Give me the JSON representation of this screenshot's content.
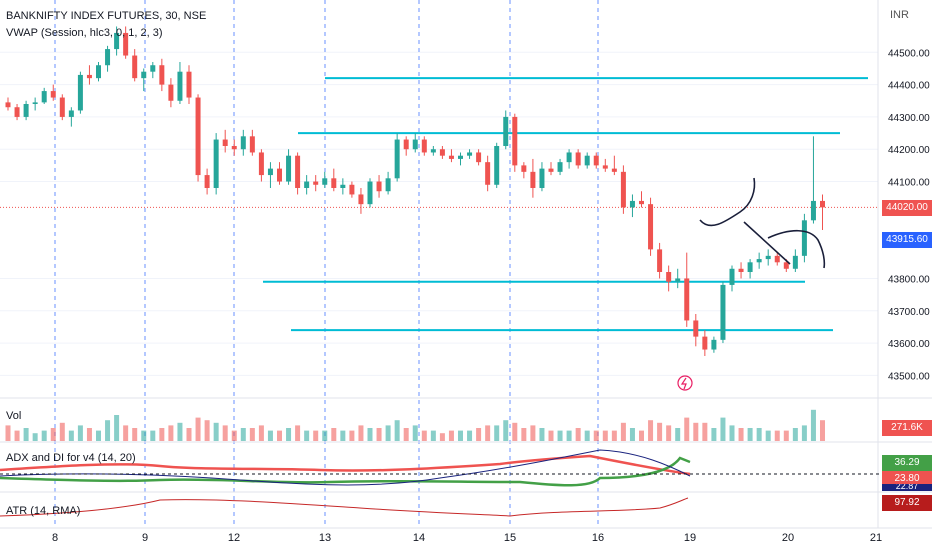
{
  "header": {
    "symbol_title": "BANKNIFTY INDEX FUTURES, 30, NSE",
    "vwap_label": "VWAP (Session, hlc3, 0, 1, 2, 3)",
    "currency": "INR"
  },
  "price_axis": {
    "ticks": [
      "44500.00",
      "44400.00",
      "44300.00",
      "44200.00",
      "44100.00",
      "43800.00",
      "43700.00",
      "43600.00",
      "43500.00"
    ],
    "tick_values": [
      44500,
      44400,
      44300,
      44200,
      44100,
      43800,
      43700,
      43600,
      43500
    ],
    "current_price": "44020.00",
    "vwap_price": "43915.60"
  },
  "time_axis": {
    "labels": [
      "8",
      "9",
      "12",
      "13",
      "14",
      "15",
      "16",
      "19",
      "20",
      "21"
    ]
  },
  "panes": {
    "volume": {
      "label": "Vol",
      "value": "271.6K"
    },
    "adx": {
      "label": "ADX and DI for v4 (14, 20)",
      "value_top": "36.29",
      "value_bottom": "23.80",
      "value_hidden": "22.87"
    },
    "atr": {
      "label": "ATR (14, RMA)",
      "value": "97.92"
    }
  },
  "colors": {
    "bull": "#26a69a",
    "bear": "#ef5350",
    "hline": "#00bcd4",
    "grid": "#f0f3fa",
    "session_sep": "#2962ff",
    "current_price_tag": "#ef5350",
    "vwap_tag": "#2962ff",
    "adx_top_tag": "#43a047",
    "atr_tag": "#b71c1c",
    "volume_tag": "#ef5350"
  },
  "chart_data": {
    "type": "candlestick",
    "ylim": [
      43430,
      44600
    ],
    "horizontal_levels": [
      44420,
      44250,
      43790,
      43640
    ],
    "candles": [
      [
        44345,
        44360,
        44320,
        44330
      ],
      [
        44330,
        44340,
        44290,
        44300
      ],
      [
        44300,
        44350,
        44290,
        44340
      ],
      [
        44340,
        44360,
        44320,
        44345
      ],
      [
        44345,
        44390,
        44340,
        44380
      ],
      [
        44380,
        44400,
        44350,
        44360
      ],
      [
        44360,
        44370,
        44290,
        44300
      ],
      [
        44300,
        44330,
        44270,
        44320
      ],
      [
        44320,
        44440,
        44310,
        44430
      ],
      [
        44430,
        44460,
        44400,
        44420
      ],
      [
        44420,
        44470,
        44410,
        44460
      ],
      [
        44460,
        44520,
        44440,
        44510
      ],
      [
        44510,
        44580,
        44490,
        44560
      ],
      [
        44560,
        44580,
        44480,
        44490
      ],
      [
        44490,
        44510,
        44410,
        44420
      ],
      [
        44420,
        44450,
        44380,
        44440
      ],
      [
        44440,
        44470,
        44420,
        44460
      ],
      [
        44460,
        44480,
        44380,
        44400
      ],
      [
        44400,
        44420,
        44330,
        44350
      ],
      [
        44350,
        44470,
        44340,
        44440
      ],
      [
        44440,
        44460,
        44340,
        44360
      ],
      [
        44360,
        44370,
        44100,
        44120
      ],
      [
        44120,
        44140,
        44060,
        44080
      ],
      [
        44080,
        44250,
        44060,
        44230
      ],
      [
        44230,
        44260,
        44190,
        44210
      ],
      [
        44210,
        44230,
        44180,
        44200
      ],
      [
        44200,
        44260,
        44180,
        44240
      ],
      [
        44240,
        44260,
        44180,
        44190
      ],
      [
        44190,
        44200,
        44100,
        44120
      ],
      [
        44120,
        44160,
        44080,
        44140
      ],
      [
        44140,
        44160,
        44090,
        44100
      ],
      [
        44100,
        44200,
        44090,
        44180
      ],
      [
        44180,
        44190,
        44060,
        44080
      ],
      [
        44080,
        44120,
        44060,
        44100
      ],
      [
        44100,
        44120,
        44070,
        44090
      ],
      [
        44090,
        44130,
        44080,
        44110
      ],
      [
        44110,
        44140,
        44070,
        44080
      ],
      [
        44080,
        44110,
        44060,
        44090
      ],
      [
        44090,
        44100,
        44050,
        44060
      ],
      [
        44060,
        44080,
        44000,
        44030
      ],
      [
        44030,
        44110,
        44020,
        44100
      ],
      [
        44100,
        44120,
        44050,
        44070
      ],
      [
        44070,
        44130,
        44060,
        44110
      ],
      [
        44110,
        44250,
        44100,
        44230
      ],
      [
        44230,
        44240,
        44180,
        44200
      ],
      [
        44200,
        44250,
        44190,
        44230
      ],
      [
        44230,
        44240,
        44180,
        44190
      ],
      [
        44190,
        44210,
        44180,
        44200
      ],
      [
        44200,
        44210,
        44170,
        44180
      ],
      [
        44180,
        44200,
        44160,
        44170
      ],
      [
        44170,
        44190,
        44150,
        44180
      ],
      [
        44180,
        44200,
        44170,
        44190
      ],
      [
        44190,
        44200,
        44150,
        44160
      ],
      [
        44160,
        44180,
        44070,
        44090
      ],
      [
        44090,
        44220,
        44080,
        44210
      ],
      [
        44210,
        44320,
        44200,
        44300
      ],
      [
        44300,
        44310,
        44130,
        44150
      ],
      [
        44150,
        44160,
        44110,
        44130
      ],
      [
        44130,
        44170,
        44050,
        44080
      ],
      [
        44080,
        44160,
        44070,
        44140
      ],
      [
        44140,
        44160,
        44120,
        44130
      ],
      [
        44130,
        44170,
        44120,
        44160
      ],
      [
        44160,
        44200,
        44140,
        44190
      ],
      [
        44190,
        44200,
        44140,
        44150
      ],
      [
        44150,
        44190,
        44140,
        44180
      ],
      [
        44180,
        44190,
        44140,
        44150
      ],
      [
        44150,
        44170,
        44130,
        44140
      ],
      [
        44140,
        44180,
        44120,
        44130
      ],
      [
        44130,
        44150,
        44000,
        44020
      ],
      [
        44020,
        44060,
        43990,
        44040
      ],
      [
        44040,
        44070,
        44020,
        44030
      ],
      [
        44030,
        44050,
        43870,
        43890
      ],
      [
        43890,
        43910,
        43800,
        43820
      ],
      [
        43820,
        43840,
        43760,
        43790
      ],
      [
        43790,
        43830,
        43770,
        43800
      ],
      [
        43800,
        43880,
        43650,
        43670
      ],
      [
        43670,
        43690,
        43590,
        43620
      ],
      [
        43620,
        43640,
        43560,
        43580
      ],
      [
        43580,
        43620,
        43570,
        43610
      ],
      [
        43610,
        43790,
        43600,
        43780
      ],
      [
        43780,
        43840,
        43760,
        43830
      ],
      [
        43830,
        43850,
        43800,
        43820
      ],
      [
        43820,
        43860,
        43800,
        43850
      ],
      [
        43850,
        43880,
        43830,
        43860
      ],
      [
        43860,
        43890,
        43840,
        43870
      ],
      [
        43870,
        43880,
        43840,
        43850
      ],
      [
        43850,
        43860,
        43820,
        43830
      ],
      [
        43830,
        43890,
        43820,
        43870
      ],
      [
        43870,
        44000,
        43850,
        43980
      ],
      [
        43980,
        44240,
        43970,
        44040
      ],
      [
        44040,
        44060,
        43950,
        44020
      ]
    ],
    "volume": [
      6,
      4,
      5,
      3,
      4,
      5,
      7,
      4,
      6,
      5,
      4,
      8,
      10,
      6,
      5,
      4,
      4,
      5,
      6,
      7,
      5,
      9,
      8,
      7,
      6,
      4,
      5,
      5,
      6,
      4,
      4,
      5,
      6,
      4,
      4,
      4,
      5,
      4,
      4,
      6,
      5,
      5,
      6,
      8,
      5,
      6,
      4,
      4,
      3,
      4,
      4,
      4,
      5,
      6,
      6,
      8,
      7,
      5,
      6,
      5,
      4,
      4,
      4,
      5,
      4,
      4,
      4,
      4,
      7,
      5,
      4,
      8,
      7,
      6,
      5,
      9,
      7,
      7,
      5,
      9,
      6,
      5,
      5,
      5,
      4,
      4,
      4,
      5,
      6,
      12,
      8
    ]
  },
  "annotations": {
    "lightning_icon": "lightning-icon"
  }
}
